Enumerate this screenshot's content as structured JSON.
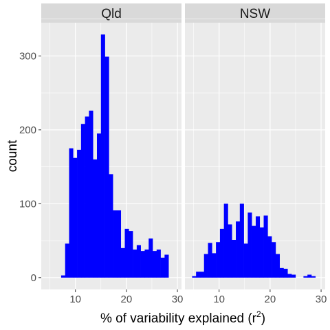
{
  "chart_data": {
    "type": "histogram",
    "facet_layout": "two panels side by side, shared y axis",
    "xlabel": "% of variability explained (r",
    "xlabel_superscript": "2",
    "xlabel_suffix": ")",
    "ylabel": "count",
    "xlim": [
      3.3,
      30.8
    ],
    "ylim": [
      -16,
      345
    ],
    "x_ticks": [
      10,
      20,
      30
    ],
    "x_tick_labels": [
      "10",
      "20",
      "30"
    ],
    "y_ticks": [
      0,
      100,
      200,
      300
    ],
    "y_tick_labels": [
      "0",
      "100",
      "200",
      "300"
    ],
    "grid": true,
    "bin_width": 0.78,
    "colors": {
      "bars": "#0000ff",
      "panel_background": "#ebebeb",
      "grid": "#ffffff",
      "strip_background": "#d9d9d9"
    },
    "panels": [
      {
        "label": "Qld",
        "bins": [
          {
            "x0": 7.2,
            "count": 3
          },
          {
            "x0": 7.98,
            "count": 46
          },
          {
            "x0": 8.76,
            "count": 175
          },
          {
            "x0": 9.54,
            "count": 162
          },
          {
            "x0": 10.32,
            "count": 173
          },
          {
            "x0": 11.1,
            "count": 208
          },
          {
            "x0": 11.88,
            "count": 218
          },
          {
            "x0": 12.66,
            "count": 226
          },
          {
            "x0": 13.44,
            "count": 160
          },
          {
            "x0": 14.22,
            "count": 195
          },
          {
            "x0": 15.0,
            "count": 329
          },
          {
            "x0": 15.78,
            "count": 299
          },
          {
            "x0": 16.56,
            "count": 140
          },
          {
            "x0": 17.34,
            "count": 91
          },
          {
            "x0": 18.12,
            "count": 91
          },
          {
            "x0": 18.9,
            "count": 40
          },
          {
            "x0": 19.68,
            "count": 66
          },
          {
            "x0": 20.46,
            "count": 63
          },
          {
            "x0": 21.24,
            "count": 38
          },
          {
            "x0": 22.02,
            "count": 44
          },
          {
            "x0": 22.8,
            "count": 36
          },
          {
            "x0": 23.58,
            "count": 38
          },
          {
            "x0": 24.36,
            "count": 53
          },
          {
            "x0": 25.14,
            "count": 36
          },
          {
            "x0": 25.92,
            "count": 38
          },
          {
            "x0": 26.7,
            "count": 27
          },
          {
            "x0": 27.48,
            "count": 31
          }
        ]
      },
      {
        "label": "NSW",
        "bins": [
          {
            "x0": 4.7,
            "count": 2
          },
          {
            "x0": 5.48,
            "count": 8
          },
          {
            "x0": 6.26,
            "count": 8
          },
          {
            "x0": 7.04,
            "count": 32
          },
          {
            "x0": 7.82,
            "count": 47
          },
          {
            "x0": 8.6,
            "count": 33
          },
          {
            "x0": 9.38,
            "count": 48
          },
          {
            "x0": 10.16,
            "count": 66
          },
          {
            "x0": 10.94,
            "count": 100
          },
          {
            "x0": 11.72,
            "count": 72
          },
          {
            "x0": 12.5,
            "count": 51
          },
          {
            "x0": 13.28,
            "count": 76
          },
          {
            "x0": 14.06,
            "count": 100
          },
          {
            "x0": 14.84,
            "count": 46
          },
          {
            "x0": 15.62,
            "count": 88
          },
          {
            "x0": 16.4,
            "count": 70
          },
          {
            "x0": 17.18,
            "count": 83
          },
          {
            "x0": 17.96,
            "count": 68
          },
          {
            "x0": 18.74,
            "count": 84
          },
          {
            "x0": 19.52,
            "count": 56
          },
          {
            "x0": 20.3,
            "count": 48
          },
          {
            "x0": 21.08,
            "count": 32
          },
          {
            "x0": 21.86,
            "count": 13
          },
          {
            "x0": 22.64,
            "count": 12
          },
          {
            "x0": 23.42,
            "count": 5
          },
          {
            "x0": 24.2,
            "count": 4
          },
          {
            "x0": 26.54,
            "count": 2
          },
          {
            "x0": 27.32,
            "count": 4
          },
          {
            "x0": 28.1,
            "count": 2
          }
        ]
      }
    ]
  }
}
